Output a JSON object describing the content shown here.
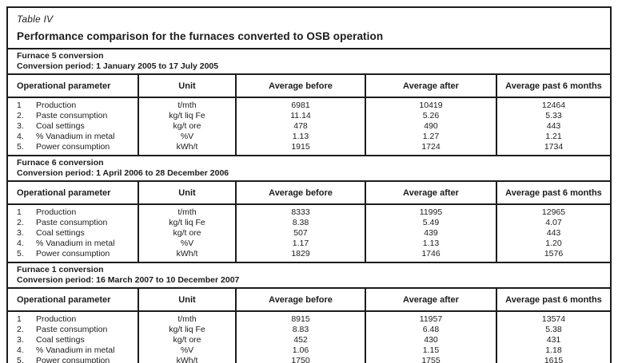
{
  "title_block": {
    "table_label": "Table IV",
    "title": "Performance comparison for the furnaces converted to OSB operation"
  },
  "columns": [
    "Operational parameter",
    "Unit",
    "Average before",
    "Average after",
    "Average past 6 months"
  ],
  "sections": [
    {
      "furnace": "Furnace 5 conversion",
      "period": "Conversion period: 1 January 2005 to 17 July 2005",
      "rows": [
        {
          "num": "1",
          "param": "Production",
          "unit": "t/mth",
          "before": "6981",
          "after": "10419",
          "past6": "12464"
        },
        {
          "num": "2.",
          "param": "Paste consumption",
          "unit": "kg/t liq Fe",
          "before": "11.14",
          "after": "5.26",
          "past6": "5.33"
        },
        {
          "num": "3.",
          "param": "Coal settings",
          "unit": "kg/t ore",
          "before": "478",
          "after": "490",
          "past6": "443"
        },
        {
          "num": "4.",
          "param": "% Vanadium in metal",
          "unit": "%V",
          "before": "1.13",
          "after": "1.27",
          "past6": "1.21"
        },
        {
          "num": "5.",
          "param": "Power consumption",
          "unit": "kWh/t",
          "before": "1915",
          "after": "1724",
          "past6": "1734"
        }
      ]
    },
    {
      "furnace": "Furnace 6 conversion",
      "period": "Conversion period: 1 April 2006 to 28 December 2006",
      "rows": [
        {
          "num": "1",
          "param": "Production",
          "unit": "t/mth",
          "before": "8333",
          "after": "11995",
          "past6": "12965"
        },
        {
          "num": "2.",
          "param": "Paste consumption",
          "unit": "kg/t liq Fe",
          "before": "8.38",
          "after": "5.49",
          "past6": "4.07"
        },
        {
          "num": "3.",
          "param": "Coal settings",
          "unit": "kg/t ore",
          "before": "507",
          "after": "439",
          "past6": "443"
        },
        {
          "num": "4.",
          "param": "% Vanadium in metal",
          "unit": "%V",
          "before": "1.17",
          "after": "1.13",
          "past6": "1.20"
        },
        {
          "num": "5.",
          "param": "Power consumption",
          "unit": "kWh/t",
          "before": "1829",
          "after": "1746",
          "past6": "1576"
        }
      ]
    },
    {
      "furnace": "Furnace 1 conversion",
      "period": "Conversion period: 16 March 2007 to 10 December 2007",
      "rows": [
        {
          "num": "1",
          "param": "Production",
          "unit": "t/mth",
          "before": "8915",
          "after": "11957",
          "past6": "13574"
        },
        {
          "num": "2.",
          "param": "Paste consumption",
          "unit": "kg/t liq Fe",
          "before": "8.83",
          "after": "6.48",
          "past6": "5.38"
        },
        {
          "num": "3.",
          "param": "Coal settings",
          "unit": "kg/t ore",
          "before": "452",
          "after": "430",
          "past6": "431"
        },
        {
          "num": "4.",
          "param": "% Vanadium in metal",
          "unit": "%V",
          "before": "1.06",
          "after": "1.15",
          "past6": "1.18"
        },
        {
          "num": "5.",
          "param": "Power consumption",
          "unit": "kWh/t",
          "before": "1750",
          "after": "1755",
          "past6": "1615"
        }
      ]
    }
  ],
  "colors": {
    "border": "#1c1c1c",
    "text": "#1c1c1c",
    "background": "#ffffff"
  }
}
